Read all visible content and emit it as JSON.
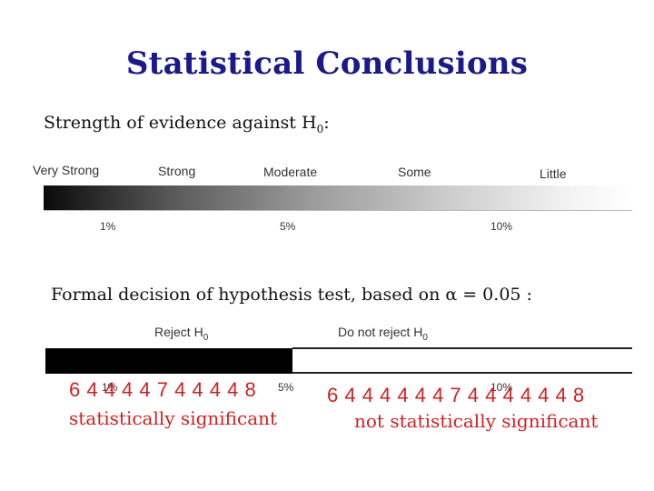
{
  "title": "Statistical Conclusions",
  "evidence": {
    "heading_text": "Strength of evidence against H",
    "heading_sub": "0",
    "heading_suffix": ":",
    "scale_labels": [
      "Very Strong",
      "Strong",
      "Moderate",
      "Some",
      "Little"
    ],
    "percent_labels": [
      "1%",
      "5%",
      "10%"
    ]
  },
  "decision": {
    "heading": "Formal decision of hypothesis test, based on α = 0.05 :",
    "reject_label": "Reject H",
    "reject_sub": "0",
    "not_reject_label": "Do not reject H",
    "not_reject_sub": "0",
    "overlay_pcts": [
      "1%",
      "5%",
      "10%"
    ],
    "left_digits": "6 4 4 4 4 7 4 4 4 4 8",
    "right_digits": "6 4 4 4 4 4 4 7 4 4 4 4 4 4 8",
    "left_caption": "statistically significant",
    "right_caption": "not statistically significant"
  },
  "colors": {
    "title": "#1a1a8c",
    "annotation": "#d12020",
    "bar_dark": "#000000"
  }
}
